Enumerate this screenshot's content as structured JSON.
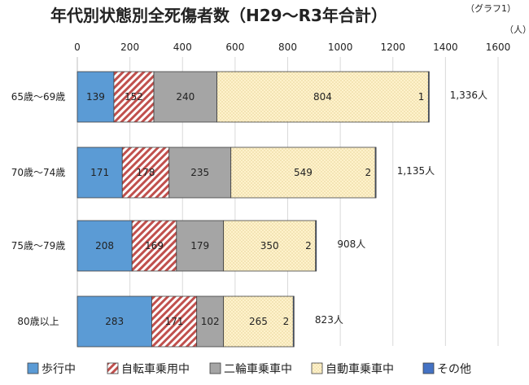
{
  "chart_data": {
    "type": "bar",
    "orientation": "horizontal",
    "stacked": true,
    "title": "年代別状態別全死傷者数（H29～R3年合計）",
    "note": "（グラフ1）",
    "unit": "（人）",
    "xlim": [
      0,
      1600
    ],
    "ticks": [
      "0",
      "200",
      "400",
      "600",
      "800",
      "1000",
      "1200",
      "1400",
      "1600"
    ],
    "categories": [
      "65歳～69歳",
      "70歳～74歳",
      "75歳～79歳",
      "80歳以上"
    ],
    "series": [
      {
        "name": "歩行中",
        "color": "#5b9bd5",
        "values": [
          139,
          171,
          208,
          283
        ],
        "labels": [
          "139",
          "171",
          "208",
          "283"
        ]
      },
      {
        "name": "自転車乗用中",
        "color": "#c0504d",
        "pattern": "hatch",
        "values": [
          152,
          178,
          169,
          171
        ],
        "labels": [
          "152",
          "178",
          "169",
          "171"
        ]
      },
      {
        "name": "二輪車乗車中",
        "color": "#a5a5a5",
        "values": [
          240,
          235,
          179,
          102
        ],
        "labels": [
          "240",
          "235",
          "179",
          "102"
        ]
      },
      {
        "name": "自動車乗車中",
        "color": "#fff2cc",
        "pattern": "dots",
        "values": [
          804,
          549,
          350,
          265
        ],
        "labels": [
          "804",
          "549",
          "350",
          "265"
        ]
      },
      {
        "name": "その他",
        "color": "#4472c4",
        "values": [
          1,
          2,
          2,
          2
        ],
        "labels": [
          "1",
          "2",
          "2",
          "2"
        ]
      }
    ],
    "totals": [
      "1,336人",
      "1,135人",
      "908人",
      "823人"
    ],
    "legend": "bottom"
  }
}
